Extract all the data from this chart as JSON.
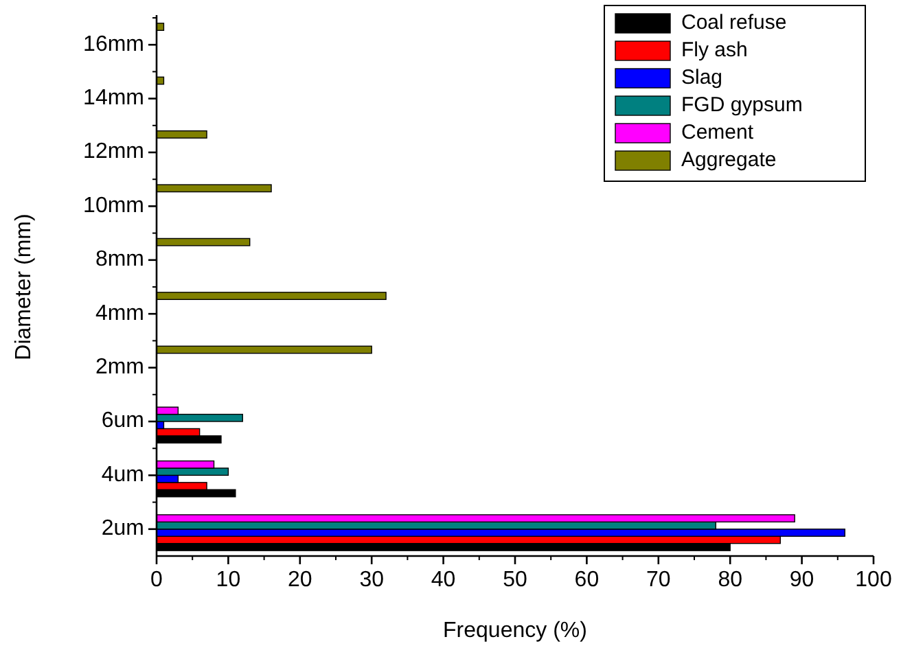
{
  "chart_data": {
    "type": "bar",
    "orientation": "horizontal",
    "xlabel": "Frequency (%)",
    "ylabel": "Diameter (mm)",
    "categories": [
      "16mm",
      "14mm",
      "12mm",
      "10mm",
      "8mm",
      "4mm",
      "2mm",
      "6um",
      "4um",
      "2um"
    ],
    "xlim": [
      0,
      100
    ],
    "xticks": [
      0,
      10,
      20,
      30,
      40,
      50,
      60,
      70,
      80,
      90,
      100
    ],
    "grid": false,
    "legend": "top right",
    "series": [
      {
        "name": "Coal refuse",
        "color": "#000000",
        "values": [
          null,
          null,
          null,
          null,
          null,
          null,
          null,
          9,
          11,
          80
        ]
      },
      {
        "name": "Fly ash",
        "color": "#ff0000",
        "values": [
          null,
          null,
          null,
          null,
          null,
          null,
          null,
          6,
          7,
          87
        ]
      },
      {
        "name": "Slag",
        "color": "#0000ff",
        "values": [
          null,
          null,
          null,
          null,
          null,
          null,
          null,
          1,
          3,
          96
        ]
      },
      {
        "name": "FGD gypsum",
        "color": "#008080",
        "values": [
          null,
          null,
          null,
          null,
          null,
          null,
          null,
          12,
          10,
          78
        ]
      },
      {
        "name": "Cement",
        "color": "#ff00ff",
        "values": [
          null,
          null,
          null,
          null,
          null,
          null,
          null,
          3,
          8,
          89
        ]
      },
      {
        "name": "Aggregate",
        "color": "#808000",
        "values": [
          1,
          1,
          7,
          16,
          13,
          32,
          30,
          null,
          null,
          null
        ]
      }
    ]
  }
}
